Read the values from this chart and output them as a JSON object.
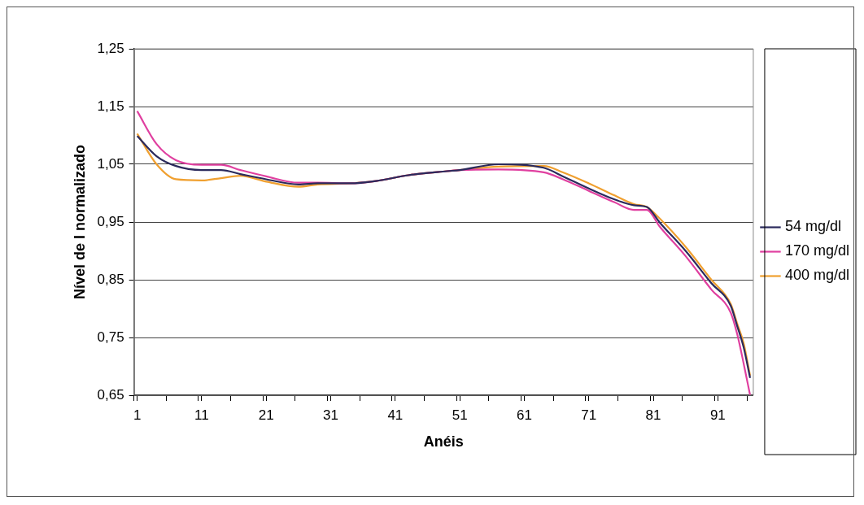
{
  "chart_data": {
    "type": "line",
    "xlabel": "Anéis",
    "ylabel": "Nível de I normalizado",
    "x": [
      1,
      4,
      7,
      11,
      14,
      17,
      21,
      26,
      29,
      34,
      38,
      43,
      49,
      51,
      57,
      64,
      67,
      71,
      75,
      78,
      80,
      82,
      86,
      90,
      93,
      94,
      95,
      96
    ],
    "series": [
      {
        "name": "54 mg/dl",
        "color": "#2b2a5c",
        "values": [
          1.099,
          1.064,
          1.047,
          1.04,
          1.04,
          1.033,
          1.024,
          1.015,
          1.017,
          1.017,
          1.021,
          1.031,
          1.038,
          1.04,
          1.05,
          1.044,
          1.029,
          1.008,
          0.989,
          0.979,
          0.976,
          0.949,
          0.9,
          0.844,
          0.805,
          0.77,
          0.733,
          0.68
        ]
      },
      {
        "name": "170 mg/dl",
        "color": "#e040a0",
        "values": [
          1.142,
          1.085,
          1.057,
          1.049,
          1.049,
          1.04,
          1.029,
          1.018,
          1.018,
          1.017,
          1.021,
          1.031,
          1.038,
          1.04,
          1.041,
          1.036,
          1.024,
          1.004,
          0.984,
          0.971,
          0.971,
          0.942,
          0.891,
          0.833,
          0.793,
          0.756,
          0.705,
          0.65
        ]
      },
      {
        "name": "400 mg/dl",
        "color": "#f0a030",
        "values": [
          1.103,
          1.05,
          1.024,
          1.022,
          1.026,
          1.03,
          1.02,
          1.011,
          1.015,
          1.017,
          1.021,
          1.031,
          1.038,
          1.04,
          1.046,
          1.047,
          1.036,
          1.017,
          0.996,
          0.981,
          0.976,
          0.956,
          0.907,
          0.85,
          0.808,
          0.774,
          0.74,
          0.684
        ]
      }
    ],
    "xlim": [
      0.5,
      96.5
    ],
    "xticks": [
      {
        "value": 0.5,
        "label": null
      },
      1,
      {
        "value": 5.5,
        "label": null
      },
      {
        "value": 10.5,
        "label": null
      },
      11,
      {
        "value": 15.5,
        "label": null
      },
      {
        "value": 20.5,
        "label": null
      },
      21,
      {
        "value": 25.5,
        "label": null
      },
      {
        "value": 30.5,
        "label": null
      },
      31,
      {
        "value": 35.5,
        "label": null
      },
      {
        "value": 40.5,
        "label": null
      },
      41,
      {
        "value": 45.5,
        "label": null
      },
      {
        "value": 50.5,
        "label": null
      },
      51,
      {
        "value": 55.5,
        "label": null
      },
      {
        "value": 60.5,
        "label": null
      },
      61,
      {
        "value": 65.5,
        "label": null
      },
      {
        "value": 70.5,
        "label": null
      },
      71,
      {
        "value": 75.5,
        "label": null
      },
      {
        "value": 80.5,
        "label": null
      },
      81,
      {
        "value": 85.5,
        "label": null
      },
      {
        "value": 90.5,
        "label": null
      },
      91,
      {
        "value": 95.5,
        "label": null
      }
    ],
    "ylim": [
      0.65,
      1.25
    ],
    "yticks": [
      {
        "value": 0.65,
        "label": "0,65"
      },
      {
        "value": 0.75,
        "label": "0,75"
      },
      {
        "value": 0.85,
        "label": "0,85"
      },
      {
        "value": 0.95,
        "label": "0,95"
      },
      {
        "value": 1.05,
        "label": "1,05"
      },
      {
        "value": 1.15,
        "label": "1,15"
      },
      {
        "value": 1.25,
        "label": "1,25"
      }
    ],
    "grid": "y",
    "legend": "right",
    "marker": "none",
    "line_style": "solid"
  }
}
